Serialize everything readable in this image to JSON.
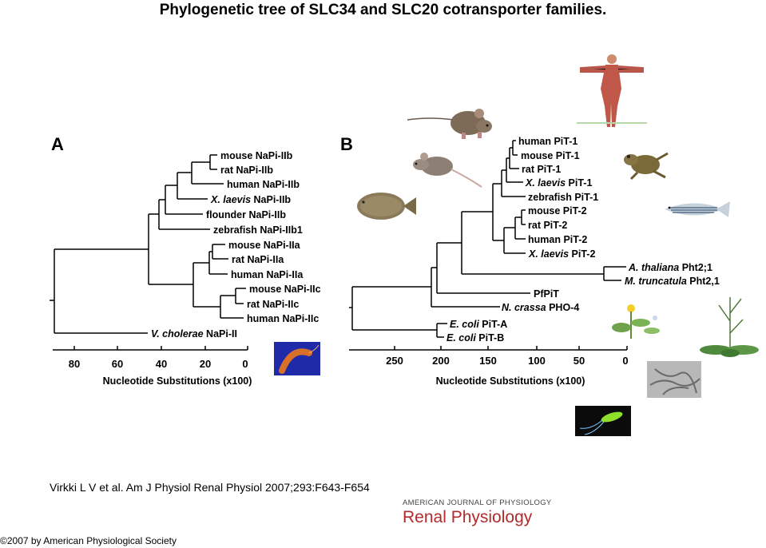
{
  "title": "Phylogenetic tree of SLC34 and SLC20 cotransporter families.",
  "panelA": {
    "letter": "A",
    "leaves": [
      {
        "pre": "mouse NaPi-IIb",
        "em": ""
      },
      {
        "pre": "rat NaPi-IIb",
        "em": ""
      },
      {
        "pre": "human NaPi-IIb",
        "em": ""
      },
      {
        "pre": " NaPi-IIb",
        "em": "X. laevis"
      },
      {
        "pre": "flounder NaPi-IIb",
        "em": ""
      },
      {
        "pre": "zebrafish NaPi-IIb1",
        "em": ""
      },
      {
        "pre": "mouse NaPi-IIa",
        "em": ""
      },
      {
        "pre": "rat NaPi-IIa",
        "em": ""
      },
      {
        "pre": "human NaPi-IIa",
        "em": ""
      },
      {
        "pre": "mouse NaPi-IIc",
        "em": ""
      },
      {
        "pre": "rat NaPi-IIc",
        "em": ""
      },
      {
        "pre": "human NaPi-IIc",
        "em": ""
      },
      {
        "pre": " NaPi-II",
        "em": "V. cholerae"
      }
    ],
    "ticks": [
      "80",
      "60",
      "40",
      "20",
      "0"
    ],
    "axis_label": "Nucleotide Substitutions (x100)"
  },
  "panelB": {
    "letter": "B",
    "leaves": [
      {
        "pre": "human PiT-1",
        "em": ""
      },
      {
        "pre": "mouse PiT-1",
        "em": ""
      },
      {
        "pre": "rat PiT-1",
        "em": ""
      },
      {
        "pre": " PiT-1",
        "em": "X. laevis"
      },
      {
        "pre": "zebrafish PiT-1",
        "em": ""
      },
      {
        "pre": "mouse PiT-2",
        "em": ""
      },
      {
        "pre": "rat PiT-2",
        "em": ""
      },
      {
        "pre": "human PiT-2",
        "em": ""
      },
      {
        "pre": " PiT-2",
        "em": "X. laevis"
      },
      {
        "pre": " Pht2;1",
        "em": "A. thaliana"
      },
      {
        "pre": " Pht2,1",
        "em": "M. truncatula"
      },
      {
        "pre": "PfPiT",
        "em": ""
      },
      {
        "pre": " PHO-4",
        "em": "N. crassa"
      },
      {
        "pre": " PiT-A",
        "em": "E. coli"
      },
      {
        "pre": " PiT-B",
        "em": "E. coli"
      }
    ],
    "ticks": [
      "250",
      "200",
      "150",
      "100",
      "50",
      "0"
    ],
    "axis_label": "Nucleotide Substitutions (x100)"
  },
  "illustrations": [
    "human-anatomy",
    "mouse",
    "rat",
    "frog",
    "flounder",
    "zebrafish",
    "vibrio-bacterium",
    "plant-flower",
    "arabidopsis-plant",
    "fungus-hyphae",
    "e-coli-bacterium"
  ],
  "citation": "Virkki L V et al. Am J Physiol Renal Physiol 2007;293:F643-F654",
  "journal": {
    "line1": "AMERICAN JOURNAL OF PHYSIOLOGY",
    "line2": "Renal Physiology"
  },
  "copyright": "©2007 by American Physiological Society"
}
